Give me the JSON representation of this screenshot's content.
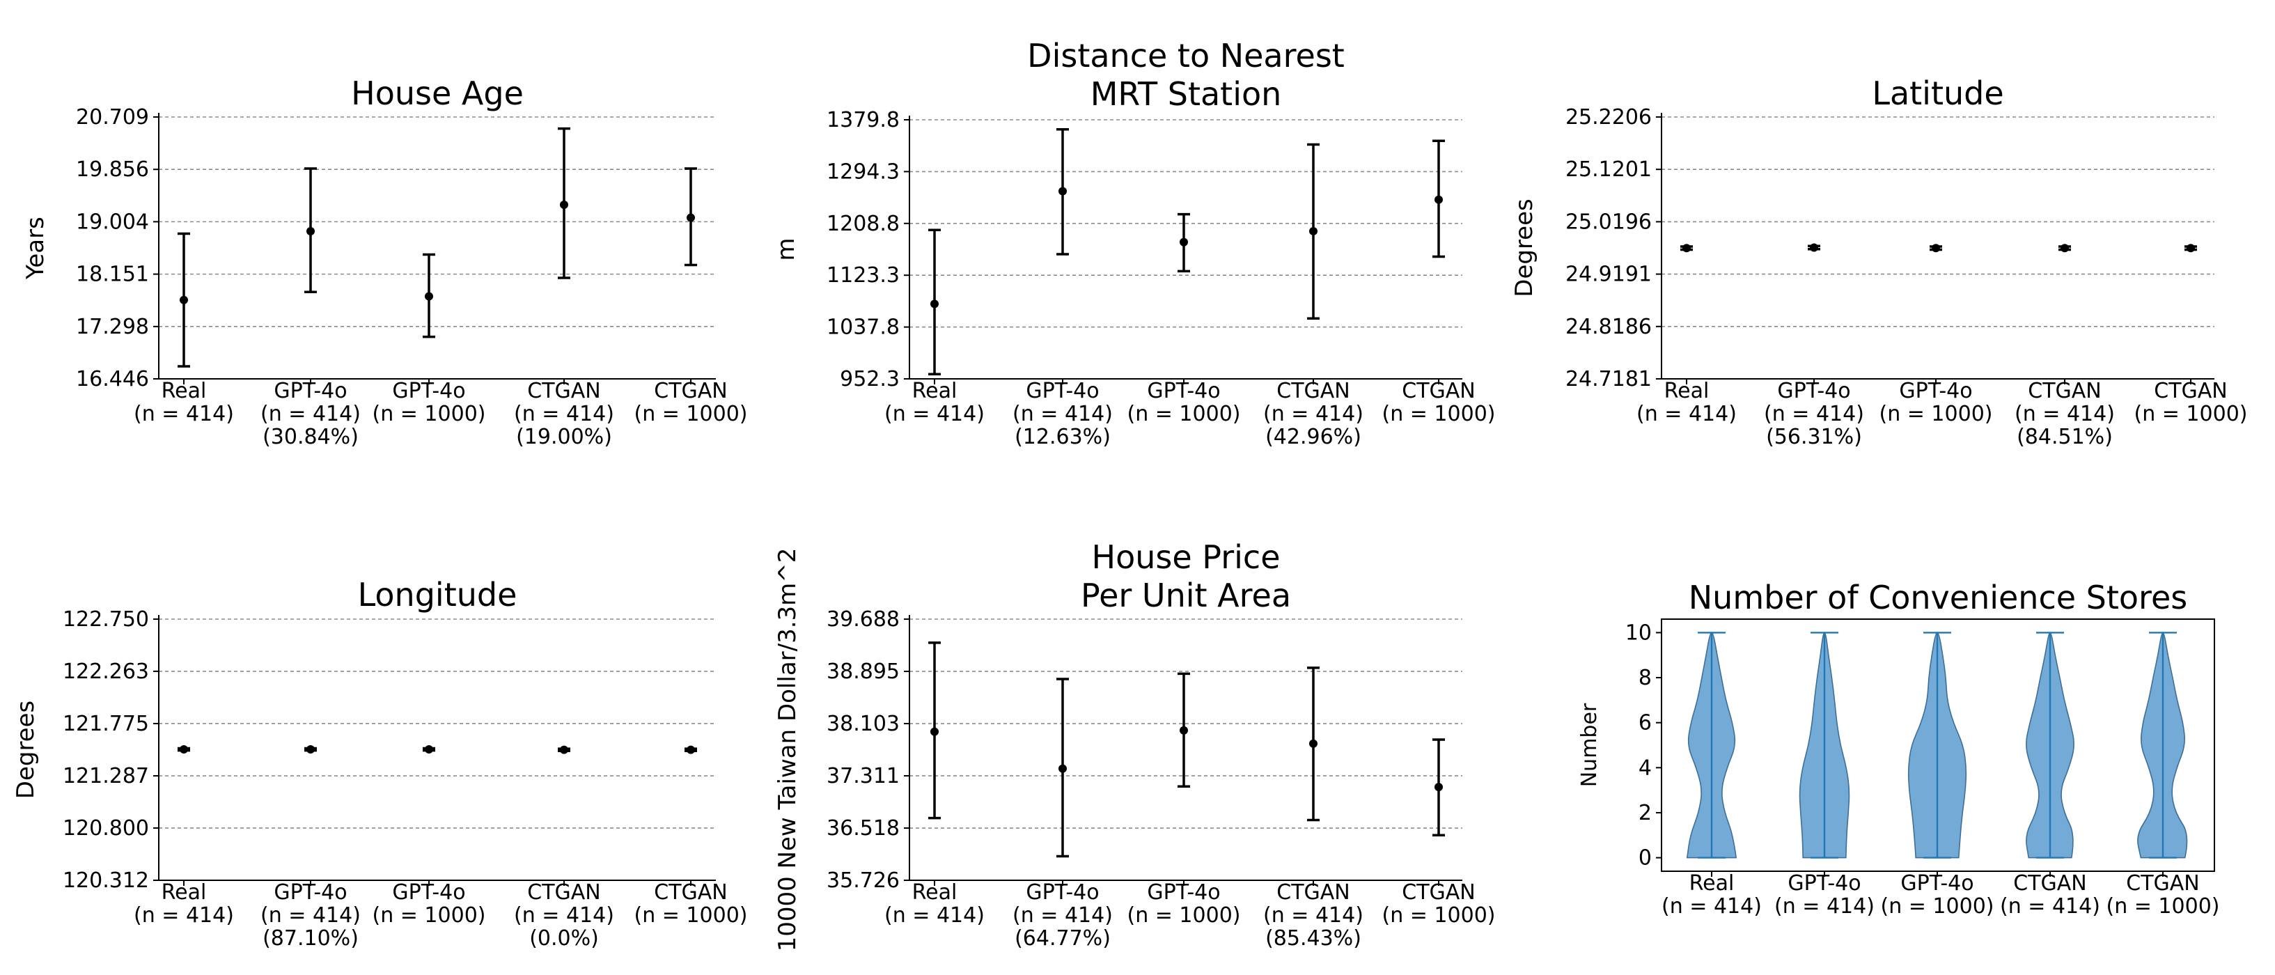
{
  "chart_data": [
    {
      "type": "errorbar",
      "title": "House Age",
      "ylabel": "Years",
      "yticks": [
        "16.446",
        "17.298",
        "18.151",
        "19.004",
        "19.856",
        "20.709"
      ],
      "ylim": [
        16.446,
        20.709
      ],
      "categories": [
        [
          "Real",
          "(n = 414)"
        ],
        [
          "GPT-4o",
          "(n = 414)",
          "(30.84%)"
        ],
        [
          "GPT-4o",
          "(n = 1000)"
        ],
        [
          "CTGAN",
          "(n = 414)",
          "(19.00%)"
        ],
        [
          "CTGAN",
          "(n = 1000)"
        ]
      ],
      "points": [
        {
          "mean": 17.73,
          "low": 16.65,
          "high": 18.81
        },
        {
          "mean": 18.85,
          "low": 17.86,
          "high": 19.87
        },
        {
          "mean": 17.79,
          "low": 17.13,
          "high": 18.47
        },
        {
          "mean": 19.28,
          "low": 18.09,
          "high": 20.52
        },
        {
          "mean": 19.07,
          "low": 18.3,
          "high": 19.87
        }
      ]
    },
    {
      "type": "errorbar",
      "title": "Distance to Nearest\nMRT Station",
      "ylabel": "m",
      "yticks": [
        "952.3",
        "1037.8",
        "1123.3",
        "1208.8",
        "1294.3",
        "1379.8"
      ],
      "ylim": [
        952.3,
        1379.8
      ],
      "categories": [
        [
          "Real",
          "(n = 414)"
        ],
        [
          "GPT-4o",
          "(n = 414)",
          "(12.63%)"
        ],
        [
          "GPT-4o",
          "(n = 1000)"
        ],
        [
          "CTGAN",
          "(n = 414)",
          "(42.96%)"
        ],
        [
          "CTGAN",
          "(n = 1000)"
        ]
      ],
      "points": [
        {
          "mean": 1076,
          "low": 960,
          "high": 1198
        },
        {
          "mean": 1262,
          "low": 1158,
          "high": 1364
        },
        {
          "mean": 1178,
          "low": 1130,
          "high": 1224
        },
        {
          "mean": 1196,
          "low": 1052,
          "high": 1339
        },
        {
          "mean": 1248,
          "low": 1154,
          "high": 1345
        }
      ]
    },
    {
      "type": "errorbar",
      "title": "Latitude",
      "ylabel": "Degrees",
      "yticks": [
        "24.7181",
        "24.8186",
        "24.9191",
        "25.0196",
        "25.1201",
        "25.2206"
      ],
      "ylim": [
        24.7181,
        25.2206
      ],
      "categories": [
        [
          "Real",
          "(n = 414)"
        ],
        [
          "GPT-4o",
          "(n = 414)",
          "(56.31%)"
        ],
        [
          "GPT-4o",
          "(n = 1000)"
        ],
        [
          "CTGAN",
          "(n = 414)",
          "(84.51%)"
        ],
        [
          "CTGAN",
          "(n = 1000)"
        ]
      ],
      "points": [
        {
          "mean": 24.969,
          "low": 24.966,
          "high": 24.972
        },
        {
          "mean": 24.97,
          "low": 24.967,
          "high": 24.973
        },
        {
          "mean": 24.969,
          "low": 24.966,
          "high": 24.972
        },
        {
          "mean": 24.969,
          "low": 24.966,
          "high": 24.972
        },
        {
          "mean": 24.969,
          "low": 24.966,
          "high": 24.972
        }
      ]
    },
    {
      "type": "errorbar",
      "title": "Longitude",
      "ylabel": "Degrees",
      "yticks": [
        "120.312",
        "120.800",
        "121.287",
        "121.775",
        "122.263",
        "122.750"
      ],
      "ylim": [
        120.312,
        122.75
      ],
      "categories": [
        [
          "Real",
          "(n = 414)"
        ],
        [
          "GPT-4o",
          "(n = 414)",
          "(87.10%)"
        ],
        [
          "GPT-4o",
          "(n = 1000)"
        ],
        [
          "CTGAN",
          "(n = 414)",
          "(0.0%)"
        ],
        [
          "CTGAN",
          "(n = 1000)"
        ]
      ],
      "points": [
        {
          "mean": 121.534,
          "low": 121.524,
          "high": 121.544
        },
        {
          "mean": 121.534,
          "low": 121.524,
          "high": 121.544
        },
        {
          "mean": 121.534,
          "low": 121.524,
          "high": 121.544
        },
        {
          "mean": 121.53,
          "low": 121.52,
          "high": 121.54
        },
        {
          "mean": 121.53,
          "low": 121.52,
          "high": 121.54
        }
      ]
    },
    {
      "type": "errorbar",
      "title": "House Price\nPer Unit Area",
      "ylabel": "10000 New Taiwan Dollar/3.3m^2",
      "yticks": [
        "35.726",
        "36.518",
        "37.311",
        "38.103",
        "38.895",
        "39.688"
      ],
      "ylim": [
        35.726,
        39.688
      ],
      "categories": [
        [
          "Real",
          "(n = 414)"
        ],
        [
          "GPT-4o",
          "(n = 414)",
          "(64.77%)"
        ],
        [
          "GPT-4o",
          "(n = 1000)"
        ],
        [
          "CTGAN",
          "(n = 414)",
          "(85.43%)"
        ],
        [
          "CTGAN",
          "(n = 1000)"
        ]
      ],
      "points": [
        {
          "mean": 37.98,
          "low": 36.67,
          "high": 39.33
        },
        {
          "mean": 37.42,
          "low": 36.09,
          "high": 38.78
        },
        {
          "mean": 38.0,
          "low": 37.15,
          "high": 38.86
        },
        {
          "mean": 37.8,
          "low": 36.64,
          "high": 38.95
        },
        {
          "mean": 37.14,
          "low": 36.41,
          "high": 37.86
        }
      ]
    },
    {
      "type": "violin",
      "title": "Number of Convenience Stores",
      "ylabel": "Number",
      "yticks": [
        "0",
        "2",
        "4",
        "6",
        "8",
        "10"
      ],
      "ylim": [
        -0.6,
        10.6
      ],
      "categories": [
        [
          "Real",
          "(n = 414)"
        ],
        [
          "GPT-4o",
          "(n = 414)"
        ],
        [
          "GPT-4o",
          "(n = 1000)"
        ],
        [
          "CTGAN",
          "(n = 414)"
        ],
        [
          "CTGAN",
          "(n = 1000)"
        ]
      ],
      "range": [
        0,
        10
      ],
      "density_levels": [
        0,
        1,
        2,
        3,
        4,
        5,
        6,
        7,
        8,
        9,
        10
      ],
      "densities": [
        [
          0.8,
          0.7,
          0.42,
          0.3,
          0.5,
          0.8,
          0.68,
          0.46,
          0.32,
          0.18,
          0.05
        ],
        [
          0.7,
          0.72,
          0.78,
          0.82,
          0.72,
          0.52,
          0.4,
          0.33,
          0.24,
          0.13,
          0.04
        ],
        [
          0.7,
          0.75,
          0.82,
          0.92,
          0.95,
          0.85,
          0.52,
          0.32,
          0.28,
          0.18,
          0.05
        ],
        [
          0.7,
          0.82,
          0.45,
          0.32,
          0.62,
          0.82,
          0.66,
          0.46,
          0.32,
          0.16,
          0.04
        ],
        [
          0.72,
          0.88,
          0.4,
          0.26,
          0.45,
          0.74,
          0.66,
          0.46,
          0.32,
          0.16,
          0.04
        ]
      ]
    }
  ]
}
